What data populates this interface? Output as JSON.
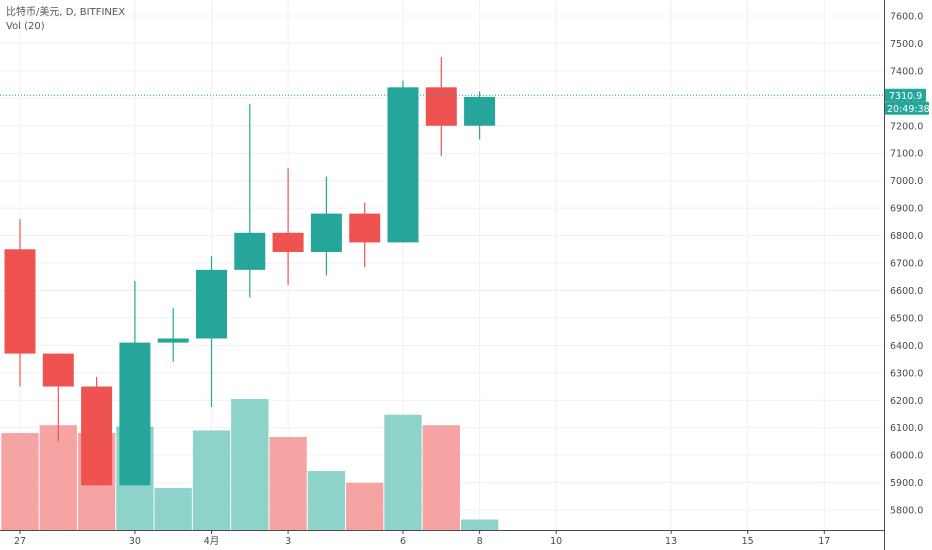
{
  "header": {
    "symbol": "比特币/美元, D, BITFINEX",
    "volume_label": "Vol (20)"
  },
  "chart_data": {
    "type": "candlestick",
    "price_axis": {
      "min": 5700,
      "max": 7700,
      "ticks": [
        5800,
        5900,
        6000,
        6100,
        6200,
        6300,
        6400,
        6500,
        6600,
        6700,
        6800,
        6900,
        7000,
        7100,
        7200,
        7300,
        7400,
        7500,
        7600
      ],
      "tick_labels": [
        "5800.0",
        "5900.0",
        "6000.0",
        "6100.0",
        "6200.0",
        "6300.0",
        "6400.0",
        "6500.0",
        "6600.0",
        "6700.0",
        "6800.0",
        "6900.0",
        "7000.0",
        "7100.0",
        "7200.0",
        "7300.0",
        "7400.0",
        "7500.0",
        "7600.0"
      ]
    },
    "time_axis": {
      "tick_labels": [
        {
          "label": "27",
          "x_index": 0
        },
        {
          "label": "30",
          "x_index": 3
        },
        {
          "label": "4月",
          "x_index": 5
        },
        {
          "label": "3",
          "x_index": 7
        },
        {
          "label": "6",
          "x_index": 10
        },
        {
          "label": "8",
          "x_index": 12
        },
        {
          "label": "10",
          "x_index": 14
        },
        {
          "label": "13",
          "x_index": 17
        },
        {
          "label": "15",
          "x_index": 19
        },
        {
          "label": "17",
          "x_index": 21
        }
      ]
    },
    "candles": [
      {
        "open": 6750,
        "high": 6860,
        "low": 6250,
        "close": 6370,
        "volume": 0.74
      },
      {
        "open": 6370,
        "high": 6370,
        "low": 6050,
        "close": 6250,
        "volume": 0.8
      },
      {
        "open": 6250,
        "high": 6285,
        "low": 5890,
        "close": 5890,
        "volume": 0.74
      },
      {
        "open": 5890,
        "high": 6635,
        "low": 5890,
        "close": 6410,
        "volume": 0.79
      },
      {
        "open": 6410,
        "high": 6535,
        "low": 6340,
        "close": 6425,
        "volume": 0.32
      },
      {
        "open": 6425,
        "high": 6725,
        "low": 6175,
        "close": 6675,
        "volume": 0.76
      },
      {
        "open": 6675,
        "high": 7280,
        "low": 6575,
        "close": 6810,
        "volume": 1.0
      },
      {
        "open": 6810,
        "high": 7045,
        "low": 6620,
        "close": 6740,
        "volume": 0.71
      },
      {
        "open": 6740,
        "high": 7015,
        "low": 6655,
        "close": 6880,
        "volume": 0.45
      },
      {
        "open": 6880,
        "high": 6920,
        "low": 6685,
        "close": 6775,
        "volume": 0.36
      },
      {
        "open": 6775,
        "high": 7365,
        "low": 6775,
        "close": 7340,
        "volume": 0.88
      },
      {
        "open": 7340,
        "high": 7450,
        "low": 7090,
        "close": 7200,
        "volume": 0.8
      },
      {
        "open": 7200,
        "high": 7325,
        "low": 7150,
        "close": 7305,
        "volume": 0.08
      }
    ],
    "last_price": 7310.9,
    "last_price_label": "7310.9",
    "countdown_label": "20:49:38",
    "colors": {
      "up": "#26a69a",
      "down": "#ef5350",
      "vol_up": "#8dd3ca",
      "vol_down": "#f5a3a3",
      "grid": "#eef0f3",
      "badge": "#26a69a",
      "price_line": "#26a69a"
    }
  }
}
